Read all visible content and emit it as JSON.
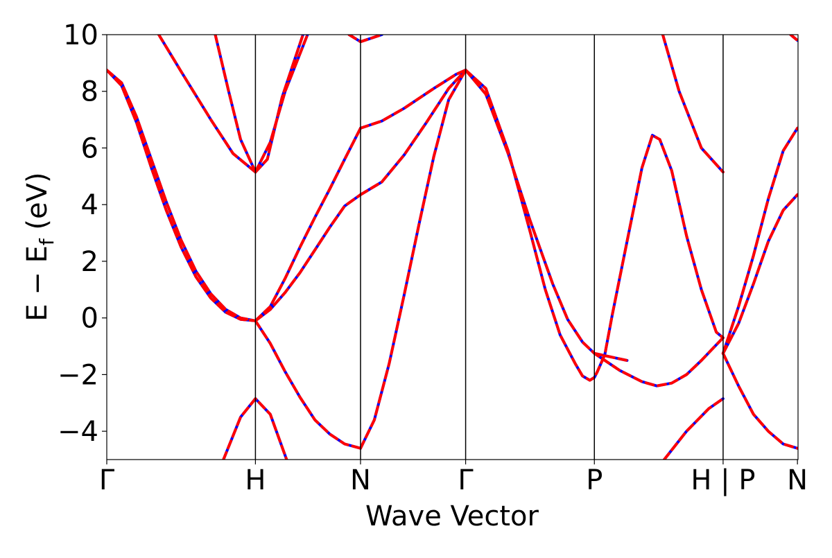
{
  "chart_data": {
    "type": "line",
    "xlabel": "Wave Vector",
    "ylabel_main": "E − E",
    "ylabel_sub": "f",
    "ylabel_unit": " (eV)",
    "ylim": [
      -5,
      10
    ],
    "xlim": [
      0,
      4.65
    ],
    "yticks": [
      -4,
      -2,
      0,
      2,
      4,
      6,
      8,
      10
    ],
    "ytick_labels": [
      "−4",
      "−2",
      "0",
      "2",
      "4",
      "6",
      "8",
      "10"
    ],
    "kpoints": [
      {
        "label": "Γ",
        "x": 0.0
      },
      {
        "label": "H",
        "x": 1.0
      },
      {
        "label": "N",
        "x": 1.707
      },
      {
        "label": "Γ",
        "x": 2.414
      },
      {
        "label": "P",
        "x": 3.28
      },
      {
        "label": "H | P",
        "x": 4.146
      },
      {
        "label": "N",
        "x": 4.646
      }
    ],
    "grid": false,
    "series": [
      {
        "color": "#0000ff",
        "style": "solid",
        "bands": [
          [
            [
              0,
              8.75
            ],
            [
              0.1,
              8.2
            ],
            [
              0.2,
              6.9
            ],
            [
              0.3,
              5.3
            ],
            [
              0.4,
              3.8
            ],
            [
              0.5,
              2.5
            ],
            [
              0.6,
              1.45
            ],
            [
              0.7,
              0.7
            ],
            [
              0.8,
              0.2
            ],
            [
              0.9,
              -0.05
            ],
            [
              1.0,
              -0.1
            ]
          ],
          [
            [
              0,
              8.75
            ],
            [
              0.1,
              8.3
            ],
            [
              0.2,
              7.1
            ],
            [
              0.3,
              5.6
            ],
            [
              0.4,
              4.1
            ],
            [
              0.5,
              2.75
            ],
            [
              0.6,
              1.65
            ],
            [
              0.7,
              0.85
            ],
            [
              0.8,
              0.3
            ],
            [
              0.9,
              0.0
            ],
            [
              1.0,
              -0.1
            ]
          ],
          [
            [
              0.35,
              10.0
            ],
            [
              0.5,
              8.7
            ],
            [
              0.7,
              7.0
            ],
            [
              0.85,
              5.8
            ],
            [
              1.0,
              5.15
            ]
          ],
          [
            [
              0.73,
              10.0
            ],
            [
              0.82,
              8.0
            ],
            [
              0.9,
              6.3
            ],
            [
              1.0,
              5.15
            ]
          ],
          [
            [
              1.0,
              5.15
            ],
            [
              1.1,
              6.2
            ],
            [
              1.2,
              8.0
            ],
            [
              1.35,
              10.0
            ]
          ],
          [
            [
              1.0,
              5.15
            ],
            [
              1.08,
              5.6
            ],
            [
              1.18,
              7.8
            ],
            [
              1.32,
              10.0
            ]
          ],
          [
            [
              0.785,
              -5.0
            ],
            [
              0.9,
              -3.5
            ],
            [
              1.0,
              -2.85
            ],
            [
              1.1,
              -3.4
            ],
            [
              1.21,
              -5.0
            ]
          ],
          [
            [
              1.0,
              -0.1
            ],
            [
              1.1,
              0.4
            ],
            [
              1.2,
              1.4
            ],
            [
              1.3,
              2.5
            ],
            [
              1.4,
              3.55
            ],
            [
              1.5,
              4.55
            ],
            [
              1.6,
              5.6
            ],
            [
              1.707,
              6.7
            ]
          ],
          [
            [
              1.0,
              -0.1
            ],
            [
              1.1,
              0.3
            ],
            [
              1.2,
              0.9
            ],
            [
              1.3,
              1.6
            ],
            [
              1.4,
              2.4
            ],
            [
              1.5,
              3.2
            ],
            [
              1.6,
              3.95
            ],
            [
              1.707,
              4.35
            ]
          ],
          [
            [
              1.0,
              -0.1
            ],
            [
              1.1,
              -0.9
            ],
            [
              1.2,
              -1.9
            ],
            [
              1.3,
              -2.8
            ],
            [
              1.4,
              -3.6
            ],
            [
              1.5,
              -4.1
            ],
            [
              1.6,
              -4.45
            ],
            [
              1.707,
              -4.6
            ]
          ],
          [
            [
              1.63,
              10.0
            ],
            [
              1.707,
              9.75
            ],
            [
              1.85,
              10.0
            ]
          ],
          [
            [
              1.707,
              6.7
            ],
            [
              1.85,
              6.95
            ],
            [
              2.0,
              7.4
            ],
            [
              2.2,
              8.1
            ],
            [
              2.35,
              8.6
            ],
            [
              2.414,
              8.75
            ]
          ],
          [
            [
              1.707,
              4.35
            ],
            [
              1.85,
              4.8
            ],
            [
              2.0,
              5.75
            ],
            [
              2.15,
              6.9
            ],
            [
              2.3,
              8.1
            ],
            [
              2.414,
              8.75
            ]
          ],
          [
            [
              1.707,
              -4.6
            ],
            [
              1.8,
              -3.6
            ],
            [
              1.9,
              -1.6
            ],
            [
              2.0,
              0.8
            ],
            [
              2.1,
              3.3
            ],
            [
              2.2,
              5.7
            ],
            [
              2.3,
              7.7
            ],
            [
              2.414,
              8.75
            ]
          ],
          [
            [
              2.414,
              8.75
            ],
            [
              2.55,
              7.9
            ],
            [
              2.7,
              5.8
            ],
            [
              2.85,
              3.4
            ],
            [
              3.0,
              1.2
            ],
            [
              3.1,
              -0.05
            ],
            [
              3.2,
              -0.85
            ],
            [
              3.28,
              -1.25
            ],
            [
              3.45,
              -1.85
            ],
            [
              3.6,
              -2.25
            ],
            [
              3.7,
              -2.4
            ],
            [
              3.8,
              -2.3
            ],
            [
              3.9,
              -2.0
            ],
            [
              4.0,
              -1.5
            ],
            [
              4.1,
              -0.95
            ],
            [
              4.146,
              -0.7
            ]
          ],
          [
            [
              2.414,
              8.75
            ],
            [
              2.55,
              8.1
            ],
            [
              2.7,
              5.9
            ],
            [
              2.85,
              3.0
            ],
            [
              2.95,
              1.0
            ],
            [
              3.05,
              -0.6
            ],
            [
              3.15,
              -1.6
            ],
            [
              3.2,
              -2.05
            ],
            [
              3.25,
              -2.2
            ],
            [
              3.28,
              -2.1
            ],
            [
              3.3,
              -1.9
            ],
            [
              3.35,
              -1.3
            ],
            [
              3.4,
              0.1
            ],
            [
              3.5,
              2.7
            ],
            [
              3.6,
              5.3
            ],
            [
              3.67,
              6.45
            ],
            [
              3.72,
              6.3
            ],
            [
              3.8,
              5.2
            ],
            [
              3.9,
              2.9
            ],
            [
              4.0,
              1.0
            ],
            [
              4.1,
              -0.5
            ],
            [
              4.146,
              -0.7
            ]
          ],
          [
            [
              3.28,
              -1.25
            ],
            [
              3.5,
              -1.5
            ]
          ],
          [
            [
              3.74,
              10.0
            ],
            [
              3.85,
              8.0
            ],
            [
              4.0,
              6.0
            ],
            [
              4.146,
              5.15
            ]
          ],
          [
            [
              3.75,
              -5.0
            ],
            [
              3.9,
              -4.0
            ],
            [
              4.05,
              -3.2
            ],
            [
              4.146,
              -2.85
            ]
          ],
          [
            [
              4.146,
              -1.25
            ],
            [
              4.25,
              0.4
            ],
            [
              4.35,
              2.2
            ],
            [
              4.45,
              4.2
            ],
            [
              4.55,
              5.9
            ],
            [
              4.646,
              6.7
            ]
          ],
          [
            [
              4.146,
              -1.25
            ],
            [
              4.25,
              -0.2
            ],
            [
              4.35,
              1.2
            ],
            [
              4.45,
              2.7
            ],
            [
              4.55,
              3.8
            ],
            [
              4.646,
              4.35
            ]
          ],
          [
            [
              4.146,
              -1.25
            ],
            [
              4.25,
              -2.4
            ],
            [
              4.35,
              -3.4
            ],
            [
              4.45,
              -4.0
            ],
            [
              4.55,
              -4.45
            ],
            [
              4.646,
              -4.6
            ]
          ],
          [
            [
              4.6,
              10.0
            ],
            [
              4.646,
              9.8
            ]
          ]
        ]
      },
      {
        "color": "#ff0000",
        "style": "dashed",
        "bands": []
      }
    ]
  }
}
